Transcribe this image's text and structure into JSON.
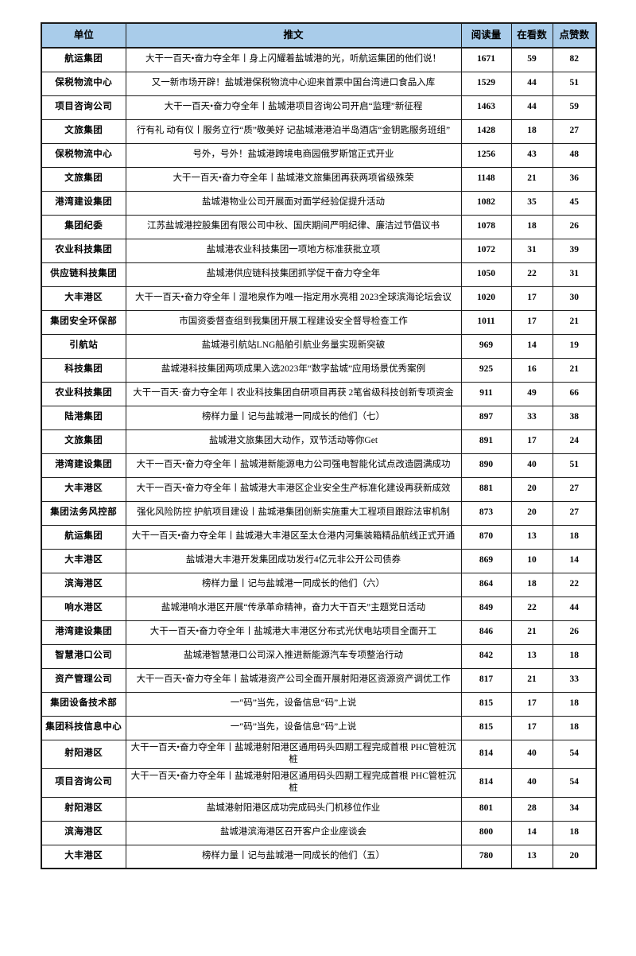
{
  "table": {
    "columns": [
      "单位",
      "推文",
      "阅读量",
      "在看数",
      "点赞数"
    ],
    "header_bg": "#a9ccea",
    "border_color": "#1c1c1c",
    "rows": [
      {
        "unit": "航运集团",
        "tweet": "大干一百天•奋力夺全年丨身上闪耀着盐城港的光，听航运集团的他们说！",
        "reads": "1671",
        "watching": "59",
        "likes": "82"
      },
      {
        "unit": "保税物流中心",
        "tweet": "又一新市场开辟！盐城港保税物流中心迎来首票中国台湾进口食品入库",
        "reads": "1529",
        "watching": "44",
        "likes": "51"
      },
      {
        "unit": "项目咨询公司",
        "tweet": "大干一百天•奋力夺全年丨盐城港项目咨询公司开启“监理”新征程",
        "reads": "1463",
        "watching": "44",
        "likes": "59"
      },
      {
        "unit": "文旅集团",
        "tweet": "行有礼 动有仪丨服务立行“质”敬美好 记盐城港港泊半岛酒店“金钥匙服务班组”",
        "reads": "1428",
        "watching": "18",
        "likes": "27"
      },
      {
        "unit": "保税物流中心",
        "tweet": "号外，号外！盐城港跨境电商园俄罗斯馆正式开业",
        "reads": "1256",
        "watching": "43",
        "likes": "48"
      },
      {
        "unit": "文旅集团",
        "tweet": "大干一百天•奋力夺全年丨盐城港文旅集团再获两项省级殊荣",
        "reads": "1148",
        "watching": "21",
        "likes": "36"
      },
      {
        "unit": "港湾建设集团",
        "tweet": "盐城港物业公司开展面对面学经验促提升活动",
        "reads": "1082",
        "watching": "35",
        "likes": "45"
      },
      {
        "unit": "集团纪委",
        "tweet": "江苏盐城港控股集团有限公司中秋、国庆期间严明纪律、廉洁过节倡议书",
        "reads": "1078",
        "watching": "18",
        "likes": "26"
      },
      {
        "unit": "农业科技集团",
        "tweet": "盐城港农业科技集团一项地方标准获批立项",
        "reads": "1072",
        "watching": "31",
        "likes": "39"
      },
      {
        "unit": "供应链科技集团",
        "tweet": "盐城港供应链科技集团抓学促干奋力夺全年",
        "reads": "1050",
        "watching": "22",
        "likes": "31"
      },
      {
        "unit": "大丰港区",
        "tweet": "大干一百天•奋力夺全年丨湿地泉作为唯一指定用水亮相 2023全球滨海论坛会议",
        "reads": "1020",
        "watching": "17",
        "likes": "30"
      },
      {
        "unit": "集团安全环保部",
        "tweet": "市国资委督查组到我集团开展工程建设安全督导检查工作",
        "reads": "1011",
        "watching": "17",
        "likes": "21"
      },
      {
        "unit": "引航站",
        "tweet": "盐城港引航站LNG船舶引航业务量实现新突破",
        "reads": "969",
        "watching": "14",
        "likes": "19"
      },
      {
        "unit": "科技集团",
        "tweet": "盐城港科技集团两项成果入选2023年“数字盐城”应用场景优秀案例",
        "reads": "925",
        "watching": "16",
        "likes": "21"
      },
      {
        "unit": "农业科技集团",
        "tweet": "大干一百天·奋力夺全年丨农业科技集团自研项目再获 2笔省级科技创新专项资金",
        "reads": "911",
        "watching": "49",
        "likes": "66"
      },
      {
        "unit": "陆港集团",
        "tweet": "榜样力量丨记与盐城港一同成长的他们（七）",
        "reads": "897",
        "watching": "33",
        "likes": "38"
      },
      {
        "unit": "文旅集团",
        "tweet": "盐城港文旅集团大动作，双节活动等你Get",
        "reads": "891",
        "watching": "17",
        "likes": "24"
      },
      {
        "unit": "港湾建设集团",
        "tweet": "大干一百天•奋力夺全年丨盐城港新能源电力公司强电智能化试点改造圆满成功",
        "reads": "890",
        "watching": "40",
        "likes": "51"
      },
      {
        "unit": "大丰港区",
        "tweet": "大干一百天•奋力夺全年丨盐城港大丰港区企业安全生产标准化建设再获新成效",
        "reads": "881",
        "watching": "20",
        "likes": "27"
      },
      {
        "unit": "集团法务风控部",
        "tweet": "强化风险防控 护航项目建设丨盐城港集团创新实施重大工程项目跟踪法审机制",
        "reads": "873",
        "watching": "20",
        "likes": "27"
      },
      {
        "unit": "航运集团",
        "tweet": "大干一百天•奋力夺全年丨盐城港大丰港区至太仓港内河集装箱精品航线正式开通",
        "reads": "870",
        "watching": "13",
        "likes": "18"
      },
      {
        "unit": "大丰港区",
        "tweet": "盐城港大丰港开发集团成功发行4亿元非公开公司债券",
        "reads": "869",
        "watching": "10",
        "likes": "14"
      },
      {
        "unit": "滨海港区",
        "tweet": "榜样力量丨记与盐城港一同成长的他们（六）",
        "reads": "864",
        "watching": "18",
        "likes": "22"
      },
      {
        "unit": "响水港区",
        "tweet": "盐城港响水港区开展“传承革命精神，奋力大干百天”主题党日活动",
        "reads": "849",
        "watching": "22",
        "likes": "44"
      },
      {
        "unit": "港湾建设集团",
        "tweet": "大干一百天•奋力夺全年丨盐城港大丰港区分布式光伏电站项目全面开工",
        "reads": "846",
        "watching": "21",
        "likes": "26"
      },
      {
        "unit": "智慧港口公司",
        "tweet": "盐城港智慧港口公司深入推进新能源汽车专项整治行动",
        "reads": "842",
        "watching": "13",
        "likes": "18"
      },
      {
        "unit": "资产管理公司",
        "tweet": "大干一百天•奋力夺全年丨盐城港资产公司全面开展射阳港区资源资产调优工作",
        "reads": "817",
        "watching": "21",
        "likes": "33"
      },
      {
        "unit": "集团设备技术部",
        "tweet": "一“码”当先，设备信息“码”上说",
        "reads": "815",
        "watching": "17",
        "likes": "18"
      },
      {
        "unit": "集团科技信息中心",
        "tweet": "一“码”当先，设备信息“码”上说",
        "reads": "815",
        "watching": "17",
        "likes": "18"
      },
      {
        "unit": "射阳港区",
        "tweet": "大干一百天•奋力夺全年丨盐城港射阳港区通用码头四期工程完成首根 PHC管桩沉桩",
        "reads": "814",
        "watching": "40",
        "likes": "54"
      },
      {
        "unit": "项目咨询公司",
        "tweet": "大干一百天•奋力夺全年丨盐城港射阳港区通用码头四期工程完成首根 PHC管桩沉桩",
        "reads": "814",
        "watching": "40",
        "likes": "54"
      },
      {
        "unit": "射阳港区",
        "tweet": "盐城港射阳港区成功完成码头门机移位作业",
        "reads": "801",
        "watching": "28",
        "likes": "34"
      },
      {
        "unit": "滨海港区",
        "tweet": "盐城港滨海港区召开客户企业座谈会",
        "reads": "800",
        "watching": "14",
        "likes": "18"
      },
      {
        "unit": "大丰港区",
        "tweet": "榜样力量丨记与盐城港一同成长的他们（五）",
        "reads": "780",
        "watching": "13",
        "likes": "20"
      }
    ]
  }
}
